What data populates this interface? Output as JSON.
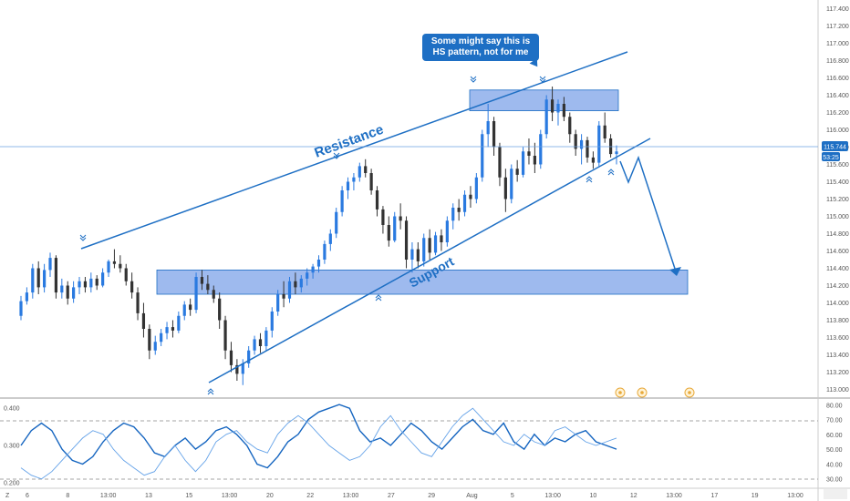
{
  "colors": {
    "accent": "#1e6fc4",
    "up": "#2a7ae0",
    "down": "#333333",
    "zone": "#7ea3e8",
    "rsi_line": "#1565c0",
    "rsi_line2": "#64a2e8"
  },
  "annotations": {
    "resistance": "Resistance",
    "support": "Support",
    "callout_line1": "Some might say this is",
    "callout_line2": "HS pattern, not for me"
  },
  "price_badge": "115.744",
  "time_badge": "53:25",
  "corner_label": "Z",
  "chart_data": [
    {
      "type": "candlestick",
      "title": "",
      "ylim": [
        112.9,
        117.5
      ],
      "y_ticks": [
        "117.400",
        "117.200",
        "117.000",
        "116.800",
        "116.600",
        "116.400",
        "116.200",
        "116.000",
        "115.800",
        "115.600",
        "115.400",
        "115.200",
        "115.000",
        "114.800",
        "114.600",
        "114.400",
        "114.200",
        "114.000",
        "113.800",
        "113.600",
        "113.400",
        "113.200",
        "113.000"
      ],
      "x_ticks": [
        "6",
        "8",
        "13:00",
        "13",
        "15",
        "13:00",
        "20",
        "22",
        "13:00",
        "27",
        "29",
        "Aug",
        "5",
        "13:00",
        "10",
        "12",
        "13:00",
        "17",
        "19",
        "13:00"
      ],
      "last_price": 115.744,
      "zones": [
        {
          "name": "support",
          "from": 114.1,
          "to": 114.38
        },
        {
          "name": "resistance",
          "from": 116.22,
          "to": 116.46
        }
      ],
      "candles": [
        [
          113.85,
          114.08,
          113.8,
          114.02
        ],
        [
          114.02,
          114.18,
          113.98,
          114.12
        ],
        [
          114.12,
          114.45,
          114.05,
          114.4
        ],
        [
          114.4,
          114.48,
          114.1,
          114.18
        ],
        [
          114.18,
          114.45,
          114.12,
          114.38
        ],
        [
          114.38,
          114.58,
          114.3,
          114.52
        ],
        [
          114.52,
          114.55,
          114.05,
          114.12
        ],
        [
          114.12,
          114.28,
          114.05,
          114.2
        ],
        [
          114.2,
          114.25,
          113.98,
          114.05
        ],
        [
          114.05,
          114.25,
          114.0,
          114.18
        ],
        [
          114.18,
          114.3,
          114.1,
          114.25
        ],
        [
          114.25,
          114.3,
          114.12,
          114.18
        ],
        [
          114.18,
          114.35,
          114.12,
          114.28
        ],
        [
          114.28,
          114.32,
          114.15,
          114.2
        ],
        [
          114.2,
          114.4,
          114.18,
          114.35
        ],
        [
          114.35,
          114.5,
          114.3,
          114.48
        ],
        [
          114.48,
          114.62,
          114.4,
          114.45
        ],
        [
          114.45,
          114.55,
          114.35,
          114.4
        ],
        [
          114.4,
          114.45,
          114.2,
          114.25
        ],
        [
          114.25,
          114.35,
          114.05,
          114.12
        ],
        [
          114.12,
          114.18,
          113.8,
          113.88
        ],
        [
          113.88,
          114.0,
          113.6,
          113.7
        ],
        [
          113.7,
          113.75,
          113.35,
          113.45
        ],
        [
          113.45,
          113.62,
          113.4,
          113.55
        ],
        [
          113.55,
          113.7,
          113.5,
          113.65
        ],
        [
          113.65,
          113.78,
          113.58,
          113.72
        ],
        [
          113.72,
          113.8,
          113.6,
          113.68
        ],
        [
          113.68,
          113.9,
          113.65,
          113.85
        ],
        [
          113.85,
          114.02,
          113.8,
          113.98
        ],
        [
          113.98,
          114.05,
          113.85,
          113.92
        ],
        [
          113.92,
          114.35,
          113.88,
          114.3
        ],
        [
          114.3,
          114.38,
          114.15,
          114.22
        ],
        [
          114.22,
          114.32,
          114.1,
          114.15
        ],
        [
          114.15,
          114.2,
          114.0,
          114.05
        ],
        [
          114.05,
          114.12,
          113.7,
          113.8
        ],
        [
          113.8,
          113.85,
          113.35,
          113.45
        ],
        [
          113.45,
          113.55,
          113.2,
          113.28
        ],
        [
          113.28,
          113.35,
          113.1,
          113.18
        ],
        [
          113.18,
          113.35,
          113.05,
          113.3
        ],
        [
          113.3,
          113.5,
          113.25,
          113.45
        ],
        [
          113.45,
          113.62,
          113.4,
          113.58
        ],
        [
          113.58,
          113.65,
          113.42,
          113.5
        ],
        [
          113.5,
          113.72,
          113.45,
          113.68
        ],
        [
          113.68,
          113.95,
          113.6,
          113.9
        ],
        [
          113.9,
          114.15,
          113.85,
          114.1
        ],
        [
          114.1,
          114.25,
          113.95,
          114.05
        ],
        [
          114.05,
          114.3,
          114.0,
          114.25
        ],
        [
          114.25,
          114.35,
          114.1,
          114.18
        ],
        [
          114.18,
          114.32,
          114.12,
          114.28
        ],
        [
          114.28,
          114.4,
          114.2,
          114.35
        ],
        [
          114.35,
          114.45,
          114.28,
          114.42
        ],
        [
          114.42,
          114.55,
          114.35,
          114.5
        ],
        [
          114.5,
          114.72,
          114.45,
          114.68
        ],
        [
          114.68,
          114.85,
          114.6,
          114.8
        ],
        [
          114.8,
          115.1,
          114.75,
          115.05
        ],
        [
          115.05,
          115.35,
          115.0,
          115.3
        ],
        [
          115.3,
          115.45,
          115.2,
          115.4
        ],
        [
          115.4,
          115.5,
          115.3,
          115.45
        ],
        [
          115.45,
          115.62,
          115.4,
          115.58
        ],
        [
          115.58,
          115.66,
          115.45,
          115.5
        ],
        [
          115.5,
          115.55,
          115.25,
          115.3
        ],
        [
          115.3,
          115.35,
          115.0,
          115.08
        ],
        [
          115.08,
          115.12,
          114.8,
          114.9
        ],
        [
          114.9,
          115.0,
          114.65,
          114.72
        ],
        [
          114.72,
          115.05,
          114.7,
          115.0
        ],
        [
          115.0,
          115.15,
          114.85,
          114.95
        ],
        [
          114.95,
          115.0,
          114.4,
          114.5
        ],
        [
          114.5,
          114.7,
          114.35,
          114.62
        ],
        [
          114.62,
          114.7,
          114.4,
          114.48
        ],
        [
          114.48,
          114.8,
          114.42,
          114.75
        ],
        [
          114.75,
          114.85,
          114.5,
          114.58
        ],
        [
          114.58,
          114.82,
          114.55,
          114.78
        ],
        [
          114.78,
          114.85,
          114.6,
          114.7
        ],
        [
          114.7,
          115.0,
          114.65,
          114.95
        ],
        [
          114.95,
          115.15,
          114.85,
          115.1
        ],
        [
          115.1,
          115.2,
          114.95,
          115.05
        ],
        [
          115.05,
          115.3,
          115.0,
          115.25
        ],
        [
          115.25,
          115.35,
          115.1,
          115.2
        ],
        [
          115.2,
          115.5,
          115.15,
          115.45
        ],
        [
          115.45,
          116.0,
          115.4,
          115.95
        ],
        [
          115.95,
          116.3,
          115.8,
          116.1
        ],
        [
          116.1,
          116.15,
          115.7,
          115.8
        ],
        [
          115.8,
          115.85,
          115.35,
          115.45
        ],
        [
          115.45,
          115.55,
          115.05,
          115.2
        ],
        [
          115.2,
          115.6,
          115.15,
          115.55
        ],
        [
          115.55,
          115.65,
          115.4,
          115.48
        ],
        [
          115.48,
          115.8,
          115.45,
          115.75
        ],
        [
          115.75,
          115.9,
          115.6,
          115.7
        ],
        [
          115.7,
          115.85,
          115.5,
          115.6
        ],
        [
          115.6,
          116.0,
          115.55,
          115.95
        ],
        [
          115.95,
          116.4,
          115.9,
          116.35
        ],
        [
          116.35,
          116.5,
          116.1,
          116.2
        ],
        [
          116.2,
          116.35,
          116.05,
          116.3
        ],
        [
          116.3,
          116.38,
          116.1,
          116.15
        ],
        [
          116.15,
          116.2,
          115.85,
          115.95
        ],
        [
          115.95,
          116.0,
          115.7,
          115.78
        ],
        [
          115.78,
          115.95,
          115.6,
          115.88
        ],
        [
          115.88,
          115.92,
          115.62,
          115.68
        ],
        [
          115.68,
          115.75,
          115.55,
          115.62
        ],
        [
          115.62,
          116.1,
          115.58,
          116.05
        ],
        [
          116.05,
          116.2,
          115.85,
          115.9
        ],
        [
          115.9,
          115.95,
          115.68,
          115.72
        ],
        [
          115.72,
          115.82,
          115.6,
          115.75
        ]
      ]
    },
    {
      "type": "line",
      "title": "",
      "ylim": [
        0.19,
        0.42
      ],
      "y_ticks_left": [
        "0.400",
        "0.300",
        "0.200"
      ],
      "y_ticks_right": [
        "80.00",
        "70.00",
        "60.00",
        "50.00",
        "40.00",
        "30.00"
      ],
      "series": [
        {
          "values": [
            0.3,
            0.34,
            0.36,
            0.34,
            0.29,
            0.26,
            0.25,
            0.27,
            0.31,
            0.34,
            0.36,
            0.35,
            0.32,
            0.28,
            0.27,
            0.3,
            0.32,
            0.29,
            0.31,
            0.34,
            0.35,
            0.33,
            0.3,
            0.25,
            0.24,
            0.27,
            0.31,
            0.33,
            0.37,
            0.39,
            0.4,
            0.41,
            0.4,
            0.34,
            0.31,
            0.32,
            0.3,
            0.33,
            0.36,
            0.34,
            0.31,
            0.29,
            0.32,
            0.35,
            0.37,
            0.34,
            0.33,
            0.36,
            0.31,
            0.29,
            0.33,
            0.3,
            0.32,
            0.31,
            0.33,
            0.34,
            0.31,
            0.3,
            0.29
          ]
        },
        {
          "values": [
            0.24,
            0.22,
            0.21,
            0.23,
            0.26,
            0.29,
            0.32,
            0.34,
            0.33,
            0.29,
            0.26,
            0.24,
            0.22,
            0.23,
            0.27,
            0.3,
            0.26,
            0.23,
            0.26,
            0.31,
            0.33,
            0.34,
            0.31,
            0.29,
            0.28,
            0.33,
            0.36,
            0.38,
            0.36,
            0.33,
            0.3,
            0.28,
            0.26,
            0.27,
            0.3,
            0.35,
            0.38,
            0.34,
            0.31,
            0.28,
            0.27,
            0.31,
            0.35,
            0.38,
            0.4,
            0.37,
            0.34,
            0.31,
            0.3,
            0.33,
            0.31,
            0.3,
            0.34,
            0.35,
            0.33,
            0.31,
            0.3,
            0.31,
            0.32
          ]
        }
      ]
    }
  ]
}
